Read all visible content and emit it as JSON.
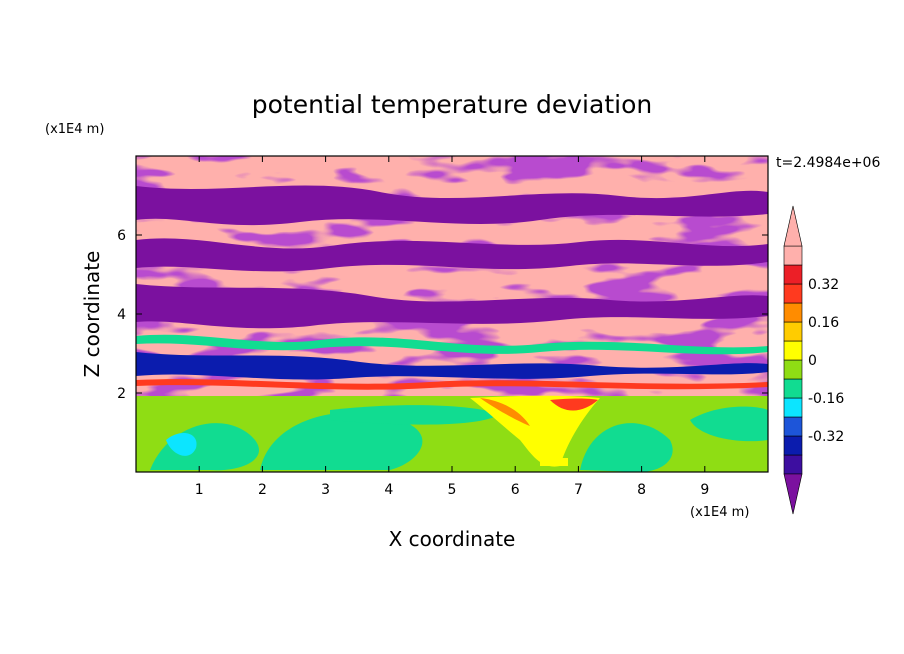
{
  "chart_data": {
    "type": "heatmap",
    "title": "potential temperature deviation",
    "xlabel": "X coordinate",
    "ylabel": "Z coordinate",
    "x_unit": "(x1E4 m)",
    "y_unit": "(x1E4 m)",
    "time_label": "t=2.4984e+06",
    "xlim": [
      0,
      10
    ],
    "ylim": [
      0,
      8
    ],
    "x_ticks": [
      "1",
      "2",
      "3",
      "4",
      "5",
      "6",
      "7",
      "8",
      "9"
    ],
    "x_tick_values": [
      1,
      2,
      3,
      4,
      5,
      6,
      7,
      8,
      9
    ],
    "y_ticks": [
      "2",
      "4",
      "6"
    ],
    "y_tick_values": [
      2,
      4,
      6
    ],
    "colorbar": {
      "levels": [
        -0.48,
        -0.4,
        -0.32,
        -0.24,
        -0.16,
        -0.08,
        0,
        0.08,
        0.16,
        0.24,
        0.32,
        0.4,
        0.48
      ],
      "labels": [
        "0.32",
        "0.16",
        "0",
        "-0.16",
        "-0.32"
      ],
      "label_values": [
        0.32,
        0.16,
        0,
        -0.16,
        -0.32
      ],
      "colors": [
        "#7b119f",
        "#3d0ea0",
        "#0b1cae",
        "#1d55d9",
        "#0ce5ff",
        "#11dc91",
        "#8fdd14",
        "#ffff00",
        "#ffcc00",
        "#ff8c00",
        "#ff3a1f",
        "#ec1f27",
        "#ffb0ac"
      ],
      "extend": "both"
    },
    "regions": {
      "upper_layer": "alternating bands of positive (pink, > 0.48) and negative (purple, < -0.48) deviation above Z≈2",
      "lower_layer": "near-zero deviation (green, -0.08 to 0.08) below Z≈2 with warm plume (yellow–red) around X≈5.5–7"
    }
  }
}
